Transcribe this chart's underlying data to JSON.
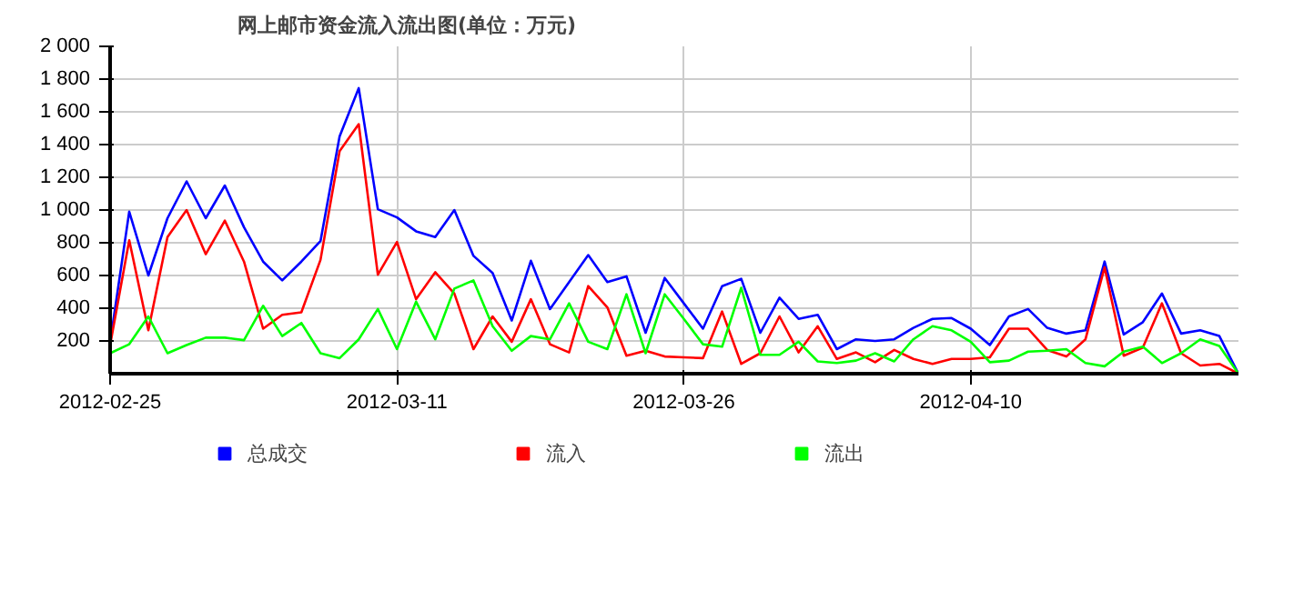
{
  "chart_data": {
    "type": "line",
    "title": "网上邮市资金流入流出图(单位：万元)",
    "x": [
      "2012-02-25",
      "2012-02-26",
      "2012-02-27",
      "2012-02-28",
      "2012-02-29",
      "2012-03-01",
      "2012-03-02",
      "2012-03-03",
      "2012-03-04",
      "2012-03-05",
      "2012-03-06",
      "2012-03-07",
      "2012-03-08",
      "2012-03-09",
      "2012-03-10",
      "2012-03-11",
      "2012-03-12",
      "2012-03-13",
      "2012-03-14",
      "2012-03-15",
      "2012-03-16",
      "2012-03-17",
      "2012-03-18",
      "2012-03-19",
      "2012-03-20",
      "2012-03-21",
      "2012-03-22",
      "2012-03-23",
      "2012-03-24",
      "2012-03-25",
      "2012-03-26",
      "2012-03-27",
      "2012-03-28",
      "2012-03-29",
      "2012-03-30",
      "2012-03-31",
      "2012-04-01",
      "2012-04-02",
      "2012-04-03",
      "2012-04-04",
      "2012-04-05",
      "2012-04-06",
      "2012-04-07",
      "2012-04-08",
      "2012-04-09",
      "2012-04-10",
      "2012-04-11",
      "2012-04-12",
      "2012-04-13",
      "2012-04-14",
      "2012-04-15",
      "2012-04-16",
      "2012-04-17",
      "2012-04-18",
      "2012-04-19",
      "2012-04-20",
      "2012-04-21",
      "2012-04-22",
      "2012-04-23",
      "2012-04-24"
    ],
    "series": [
      {
        "name": "总成交",
        "color": "#0000ff",
        "values": [
          190,
          990,
          600,
          950,
          1175,
          950,
          1150,
          895,
          685,
          570,
          685,
          810,
          1450,
          1745,
          1005,
          955,
          870,
          835,
          1000,
          720,
          615,
          325,
          690,
          395,
          560,
          725,
          560,
          595,
          250,
          585,
          430,
          275,
          535,
          580,
          250,
          465,
          335,
          360,
          150,
          210,
          200,
          210,
          280,
          335,
          340,
          275,
          175,
          350,
          395,
          280,
          245,
          265,
          685,
          240,
          315,
          490,
          245,
          265,
          230,
          0
        ]
      },
      {
        "name": "流入",
        "color": "#ff0000",
        "values": [
          175,
          815,
          265,
          835,
          1000,
          730,
          935,
          685,
          275,
          360,
          375,
          695,
          1360,
          1525,
          605,
          805,
          455,
          620,
          490,
          150,
          350,
          195,
          455,
          180,
          130,
          535,
          405,
          110,
          140,
          105,
          100,
          95,
          380,
          60,
          125,
          350,
          130,
          290,
          90,
          130,
          70,
          145,
          90,
          60,
          90,
          90,
          100,
          275,
          275,
          145,
          105,
          210,
          650,
          110,
          160,
          430,
          125,
          50,
          60,
          0
        ]
      },
      {
        "name": "流出",
        "color": "#00ff00",
        "values": [
          125,
          180,
          350,
          125,
          175,
          220,
          220,
          205,
          415,
          230,
          310,
          125,
          95,
          210,
          395,
          150,
          440,
          210,
          520,
          570,
          290,
          140,
          230,
          210,
          430,
          195,
          150,
          485,
          125,
          485,
          335,
          180,
          165,
          525,
          115,
          115,
          195,
          75,
          65,
          80,
          125,
          75,
          210,
          290,
          265,
          195,
          70,
          80,
          135,
          140,
          150,
          65,
          45,
          135,
          165,
          65,
          125,
          210,
          170,
          0
        ]
      }
    ],
    "xlim": [
      "2012-02-25",
      "2012-04-24"
    ],
    "xticks": [
      "2012-02-25",
      "2012-03-11",
      "2012-03-26",
      "2012-04-10"
    ],
    "ylim": [
      0,
      2000
    ],
    "yticks": [
      {
        "value": 200,
        "label": "200"
      },
      {
        "value": 400,
        "label": "400"
      },
      {
        "value": 600,
        "label": "600"
      },
      {
        "value": 800,
        "label": "800"
      },
      {
        "value": 1000,
        "label": "1 000"
      },
      {
        "value": 1200,
        "label": "1 200"
      },
      {
        "value": 1400,
        "label": "1 400"
      },
      {
        "value": 1600,
        "label": "1 600"
      },
      {
        "value": 1800,
        "label": "1 800"
      },
      {
        "value": 2000,
        "label": "2 000"
      }
    ],
    "grid": true,
    "legend": "bottom",
    "marker": "none",
    "line_style": "solid"
  }
}
